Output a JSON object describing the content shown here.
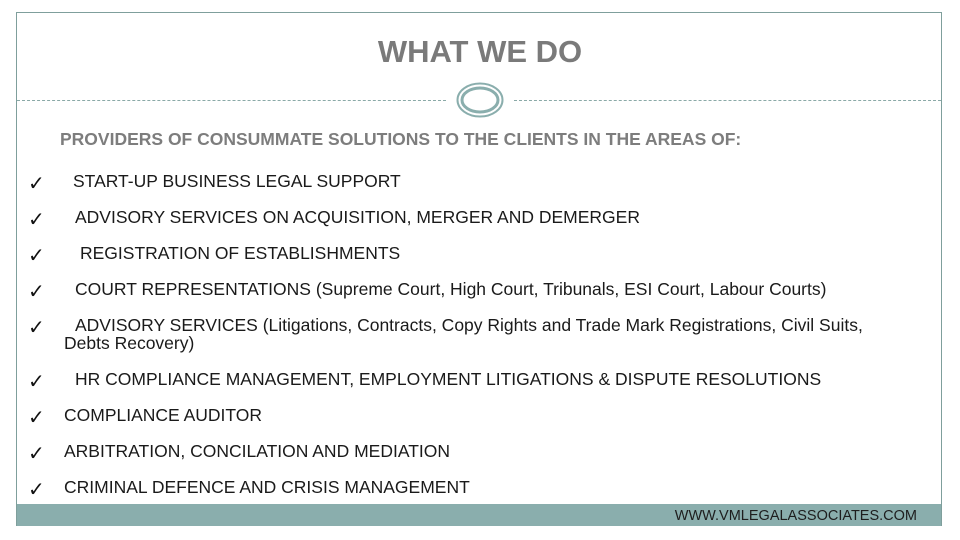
{
  "slide": {
    "title": "WHAT WE DO",
    "subtitle": "PROVIDERS OF CONSUMMATE SOLUTIONS TO THE CLIENTS IN THE AREAS OF:",
    "check_symbol": "✓",
    "items": [
      {
        "text": "START-UP BUSINESS LEGAL SUPPORT"
      },
      {
        "text": "ADVISORY SERVICES ON ACQUISITION, MERGER AND DEMERGER"
      },
      {
        "text": "REGISTRATION OF ESTABLISHMENTS"
      },
      {
        "text": "COURT REPRESENTATIONS (Supreme Court, High Court, Tribunals, ESI Court, Labour Courts)"
      },
      {
        "line1": "ADVISORY SERVICES (Litigations, Contracts, Copy Rights and Trade Mark Registrations, Civil Suits,",
        "line2": "Debts Recovery)"
      },
      {
        "text": "HR COMPLIANCE MANAGEMENT, EMPLOYMENT LITIGATIONS & DISPUTE RESOLUTIONS"
      },
      {
        "text": "COMPLIANCE AUDITOR"
      },
      {
        "text": "ARBITRATION, CONCILATION AND MEDIATION"
      },
      {
        "text": "CRIMINAL DEFENCE AND CRISIS MANAGEMENT"
      }
    ],
    "footer": {
      "website": "WWW.VMLEGALASSOCIATES.COM"
    },
    "colors": {
      "accent": "#8aaead",
      "title": "#7a7a7a",
      "border": "#7f9f9c"
    }
  }
}
